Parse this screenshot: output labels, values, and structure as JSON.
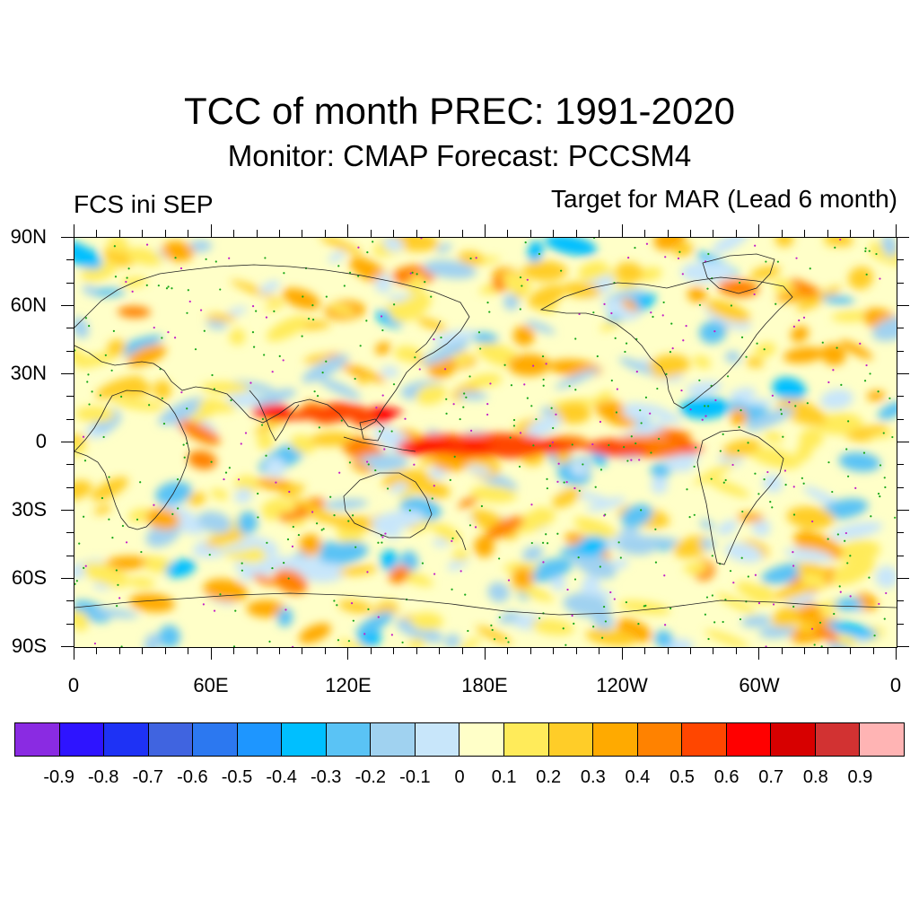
{
  "title": "TCC of month PREC: 1991-2020",
  "subtitle": "Monitor: CMAP   Forecast: PCCSM4",
  "left_label": "FCS ini SEP",
  "right_label": "Target for MAR (Lead 6 month)",
  "y_axis": {
    "labels": [
      "90N",
      "60N",
      "30N",
      "0",
      "30S",
      "60S",
      "90S"
    ]
  },
  "x_axis": {
    "labels": [
      "0",
      "60E",
      "120E",
      "180E",
      "120W",
      "60W",
      "0"
    ]
  },
  "colorbar": {
    "colors": [
      "#8a2be2",
      "#2e14ff",
      "#1e32f5",
      "#4064e0",
      "#2c78f0",
      "#1e96ff",
      "#00bfff",
      "#5ac3f5",
      "#a0d2f0",
      "#c8e6fa",
      "#ffffc8",
      "#ffeb5a",
      "#ffcd28",
      "#ffaa00",
      "#ff8200",
      "#ff4600",
      "#ff0000",
      "#d70000",
      "#d23232",
      "#ffb4b4"
    ],
    "labels": [
      "-0.9",
      "-0.8",
      "-0.7",
      "-0.6",
      "-0.5",
      "-0.4",
      "-0.3",
      "-0.2",
      "-0.1",
      "0",
      "0.1",
      "0.2",
      "0.3",
      "0.4",
      "0.5",
      "0.6",
      "0.7",
      "0.8",
      "0.9"
    ]
  }
}
